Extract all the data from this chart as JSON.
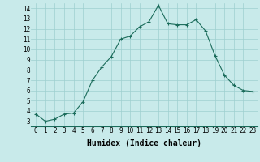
{
  "x": [
    0,
    1,
    2,
    3,
    4,
    5,
    6,
    7,
    8,
    9,
    10,
    11,
    12,
    13,
    14,
    15,
    16,
    17,
    18,
    19,
    20,
    21,
    22,
    23
  ],
  "y": [
    3.7,
    3.0,
    3.2,
    3.7,
    3.8,
    4.9,
    7.0,
    8.3,
    9.3,
    11.0,
    11.3,
    12.2,
    12.7,
    14.3,
    12.5,
    12.4,
    12.4,
    12.9,
    11.8,
    9.4,
    7.5,
    6.5,
    6.0,
    5.9
  ],
  "line_color": "#1a6b5a",
  "bg_color": "#c8eaea",
  "grid_color": "#9ecfcf",
  "xlabel": "Humidex (Indice chaleur)",
  "ylim": [
    2.5,
    14.5
  ],
  "xlim": [
    -0.5,
    23.5
  ],
  "yticks": [
    3,
    4,
    5,
    6,
    7,
    8,
    9,
    10,
    11,
    12,
    13,
    14
  ],
  "xticks": [
    0,
    1,
    2,
    3,
    4,
    5,
    6,
    7,
    8,
    9,
    10,
    11,
    12,
    13,
    14,
    15,
    16,
    17,
    18,
    19,
    20,
    21,
    22,
    23
  ],
  "font_size": 5.5,
  "xlabel_fontsize": 7
}
